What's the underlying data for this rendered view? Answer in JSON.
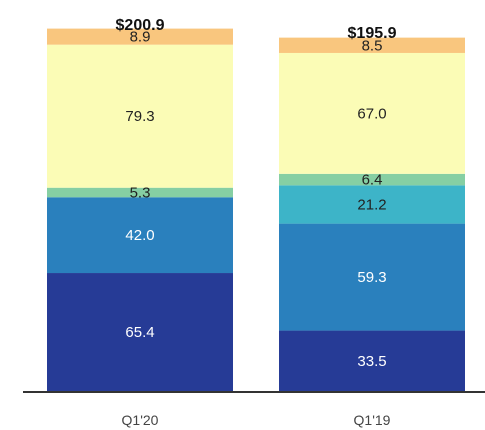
{
  "chart_data": {
    "type": "bar",
    "stacked": true,
    "categories": [
      "Q1'20",
      "Q1'19"
    ],
    "totals": [
      "$200.9",
      "$195.9"
    ],
    "series": [
      {
        "values": [
          65.4,
          33.5
        ],
        "labels": [
          "65.4",
          "33.5"
        ],
        "color": "#263b96",
        "text_color": "#ffffff"
      },
      {
        "values": [
          42.0,
          59.3
        ],
        "labels": [
          "42.0",
          "59.3"
        ],
        "color": "#2a80bd",
        "text_color": "#ffffff"
      },
      {
        "values": [
          0,
          21.2
        ],
        "labels": [
          "",
          "21.2"
        ],
        "color": "#3db4c8",
        "text_color": "#222222"
      },
      {
        "values": [
          5.3,
          6.4
        ],
        "labels": [
          "5.3",
          "6.4"
        ],
        "color": "#86cfa3",
        "text_color": "#222222"
      },
      {
        "values": [
          79.3,
          67.0
        ],
        "labels": [
          "79.3",
          "67.0"
        ],
        "color": "#fbfcb6",
        "text_color": "#222222"
      },
      {
        "values": [
          8.9,
          8.5
        ],
        "labels": [
          "8.9",
          "8.5"
        ],
        "color": "#f9c67e",
        "text_color": "#222222"
      }
    ],
    "ylim": [
      0,
      209
    ],
    "legend": "none",
    "grid": false
  }
}
